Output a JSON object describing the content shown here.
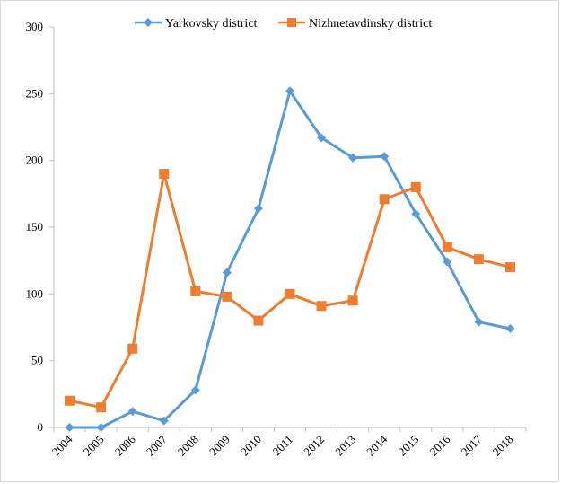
{
  "chart_data": {
    "type": "line",
    "title": "",
    "xlabel": "",
    "ylabel": "",
    "x": [
      "2004",
      "2005",
      "2006",
      "2007",
      "2008",
      "2009",
      "2010",
      "2011",
      "2012",
      "2013",
      "2014",
      "2015",
      "2016",
      "2017",
      "2018"
    ],
    "ylim": [
      0,
      300
    ],
    "yticks": [
      "0",
      "50",
      "100",
      "150",
      "200",
      "250",
      "300"
    ],
    "grid": false,
    "legend_position": "top",
    "series": [
      {
        "name": "Yarkovsky district",
        "color": "#5b9bd5",
        "marker": "diamond",
        "values": [
          0,
          0,
          12,
          5,
          28,
          116,
          164,
          252,
          217,
          202,
          203,
          160,
          124,
          79,
          74
        ]
      },
      {
        "name": "Nizhnetavdinsky district",
        "color": "#ed7d31",
        "marker": "square",
        "values": [
          20,
          15,
          59,
          190,
          102,
          98,
          80,
          100,
          91,
          95,
          171,
          180,
          135,
          126,
          120
        ]
      }
    ]
  }
}
